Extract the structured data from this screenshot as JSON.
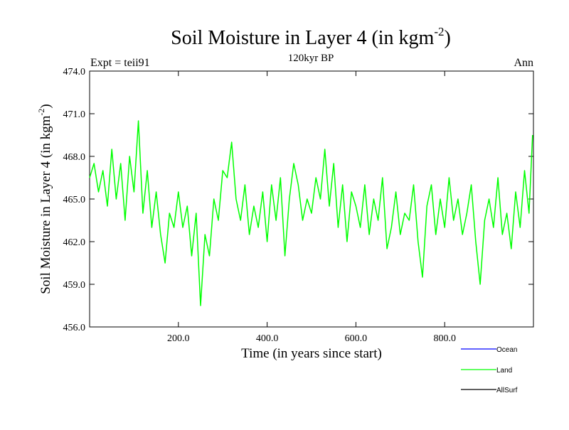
{
  "chart_data": {
    "type": "line",
    "title": "Soil Moisture in Layer 4 (in kgm",
    "title_sup": "-2",
    "title_close": ")",
    "subtitle": "120kyr BP",
    "left_label": "Expt = teii91",
    "right_label": "Ann",
    "xlabel": "Time (in years since start)",
    "ylabel": "Soil Moisture in Layer 4 (in kgm",
    "ylabel_sup": "-2",
    "ylabel_close": ")",
    "xlim": [
      0,
      1000
    ],
    "ylim": [
      456.0,
      474.0
    ],
    "x_ticks": [
      200,
      400,
      600,
      800
    ],
    "x_tick_labels": [
      "200.0",
      "400.0",
      "600.0",
      "800.0"
    ],
    "y_ticks": [
      456,
      459,
      462,
      465,
      468,
      471,
      474
    ],
    "y_tick_labels": [
      "456.0",
      "459.0",
      "462.0",
      "465.0",
      "468.0",
      "471.0",
      "474.0"
    ],
    "grid": false,
    "legend_position": "bottom-right",
    "series": [
      {
        "name": "Ocean",
        "color": "#0000ff",
        "x": [],
        "y": []
      },
      {
        "name": "Land",
        "color": "#00ff00",
        "x": [
          0,
          10,
          20,
          30,
          40,
          50,
          60,
          70,
          80,
          90,
          100,
          110,
          120,
          130,
          140,
          150,
          160,
          170,
          180,
          190,
          200,
          210,
          220,
          230,
          240,
          250,
          260,
          270,
          280,
          290,
          300,
          310,
          320,
          330,
          340,
          350,
          360,
          370,
          380,
          390,
          400,
          410,
          420,
          430,
          440,
          450,
          460,
          470,
          480,
          490,
          500,
          510,
          520,
          530,
          540,
          550,
          560,
          570,
          580,
          590,
          600,
          610,
          620,
          630,
          640,
          650,
          660,
          670,
          680,
          690,
          700,
          710,
          720,
          730,
          740,
          750,
          760,
          770,
          780,
          790,
          800,
          810,
          820,
          830,
          840,
          850,
          860,
          870,
          880,
          890,
          900,
          910,
          920,
          930,
          940,
          950,
          960,
          970,
          980,
          990,
          998
        ],
        "y": [
          466.5,
          467.5,
          465.5,
          467.0,
          464.5,
          468.5,
          465.0,
          467.5,
          463.5,
          468.0,
          465.5,
          470.5,
          464.0,
          467.0,
          463.0,
          465.5,
          462.5,
          460.5,
          464.0,
          463.0,
          465.5,
          463.0,
          464.5,
          461.0,
          464.0,
          457.5,
          462.5,
          461.0,
          465.0,
          463.5,
          467.0,
          466.5,
          469.0,
          465.0,
          463.5,
          466.0,
          462.5,
          464.5,
          463.0,
          465.5,
          462.0,
          466.0,
          463.5,
          466.5,
          461.0,
          465.0,
          467.5,
          466.0,
          463.5,
          465.0,
          464.0,
          466.5,
          465.0,
          468.5,
          464.5,
          467.5,
          463.0,
          466.0,
          462.0,
          465.5,
          464.5,
          463.0,
          466.0,
          462.5,
          465.0,
          463.5,
          466.5,
          461.5,
          463.0,
          465.5,
          462.5,
          464.0,
          463.5,
          466.0,
          462.0,
          459.5,
          464.5,
          466.0,
          462.5,
          465.0,
          463.0,
          466.5,
          463.5,
          465.0,
          462.5,
          464.0,
          466.0,
          462.0,
          459.0,
          463.5,
          465.0,
          463.0,
          466.5,
          462.5,
          464.0,
          461.5,
          465.5,
          463.0,
          467.0,
          464.0,
          469.5
        ]
      },
      {
        "name": "AllSurf",
        "color": "#000000",
        "x": [],
        "y": []
      }
    ],
    "legend_entries": [
      "Ocean",
      "Land",
      "AllSurf"
    ]
  }
}
